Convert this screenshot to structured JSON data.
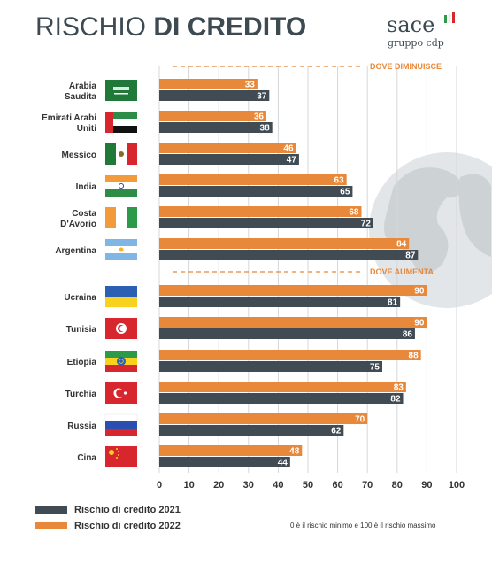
{
  "header": {
    "title_light": "RISCHIO",
    "title_bold": "DI CREDITO",
    "brand_name": "sace",
    "brand_sub": "gruppo cdp"
  },
  "colors": {
    "series_2021": "#404b54",
    "series_2022": "#e8883a",
    "section_label": "#e8883a",
    "country_label": "#333333"
  },
  "chart_data": {
    "type": "bar",
    "orientation": "horizontal",
    "categories": [
      "Arabia Saudita",
      "Emirati Arabi Uniti",
      "Messico",
      "India",
      "Costa D'Avorio",
      "Argentina",
      "Ucraina",
      "Tunisia",
      "Etiopia",
      "Turchia",
      "Russia",
      "Cina"
    ],
    "category_labels": [
      [
        "Arabia",
        "Saudita"
      ],
      [
        "Emirati Arabi",
        "Uniti"
      ],
      [
        "Messico"
      ],
      [
        "India"
      ],
      [
        "Costa",
        "D'Avorio"
      ],
      [
        "Argentina"
      ],
      [
        "Ucraina"
      ],
      [
        "Tunisia"
      ],
      [
        "Etiopia"
      ],
      [
        "Turchia"
      ],
      [
        "Russia"
      ],
      [
        "Cina"
      ]
    ],
    "flags": [
      "saudi-flag",
      "uae-flag",
      "mexico-flag",
      "india-flag",
      "ivory-coast-flag",
      "argentina-flag",
      "ukraine-flag",
      "tunisia-flag",
      "ethiopia-flag",
      "turkey-flag",
      "russia-flag",
      "china-flag"
    ],
    "series": [
      {
        "name": "Rischio di credito 2022",
        "values": [
          33,
          36,
          46,
          63,
          68,
          84,
          90,
          90,
          88,
          83,
          70,
          48
        ]
      },
      {
        "name": "Rischio di credito 2021",
        "values": [
          37,
          38,
          47,
          65,
          72,
          87,
          81,
          86,
          75,
          82,
          62,
          44
        ]
      }
    ],
    "sections": [
      {
        "label": "DOVE DIMINUISCE",
        "first_category": 0
      },
      {
        "label": "DOVE AUMENTA",
        "first_category": 6
      }
    ],
    "xlim": [
      0,
      100
    ],
    "xticks": [
      0,
      10,
      20,
      30,
      40,
      50,
      60,
      70,
      80,
      90,
      100
    ],
    "grid": true,
    "legend_position": "bottom-left",
    "legend": [
      "Rischio di credito 2021",
      "Rischio di credito 2022"
    ],
    "note": "0 è il rischio minimo e 100 è il rischio massimo"
  }
}
